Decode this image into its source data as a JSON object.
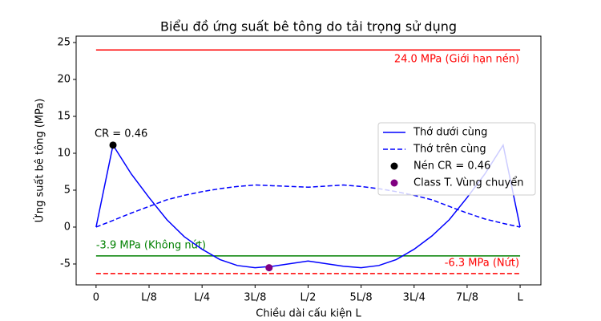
{
  "chart_data": {
    "type": "line",
    "title": "Biểu đồ ứng suất bê tông do tải trọng sử dụng",
    "xlabel": "Chiều dài cấu kiện L",
    "ylabel": "Ứng suất bê tông (MPa)",
    "xlim": [
      -0.047,
      1.049
    ],
    "ylim": [
      -7.83,
      25.87
    ],
    "xticks": [
      0,
      {
        "value": 0.125,
        "label": "L/8"
      },
      {
        "value": 0.25,
        "label": "L/4"
      },
      {
        "value": 0.375,
        "label": "3L/8"
      },
      {
        "value": 0.5,
        "label": "L/2"
      },
      {
        "value": 0.625,
        "label": "5L/8"
      },
      {
        "value": 0.75,
        "label": "3L/4"
      },
      {
        "value": 0.875,
        "label": "7L/8"
      },
      {
        "value": 1,
        "label": "L"
      }
    ],
    "yticks": [
      -5,
      0,
      5,
      10,
      15,
      20,
      25
    ],
    "legend": "center right",
    "series": [
      {
        "name": "Thớ dưới cùng",
        "kind": "line",
        "style": "solid",
        "color": "#0000ff",
        "x": [
          0,
          0.04,
          0.083,
          0.125,
          0.167,
          0.208,
          0.25,
          0.292,
          0.333,
          0.375,
          0.417,
          0.5,
          0.583,
          0.625,
          0.667,
          0.708,
          0.75,
          0.792,
          0.833,
          0.875,
          0.917,
          0.96,
          1
        ],
        "values": [
          0,
          11.1,
          7.2,
          4.0,
          1.0,
          -1.3,
          -3.0,
          -4.4,
          -5.2,
          -5.5,
          -5.3,
          -4.6,
          -5.3,
          -5.5,
          -5.2,
          -4.4,
          -3.0,
          -1.2,
          1.0,
          4.0,
          7.2,
          11.1,
          0
        ]
      },
      {
        "name": "Thớ trên cùng",
        "kind": "line",
        "style": "dashed",
        "color": "#0000ff",
        "x": [
          0,
          0.04,
          0.083,
          0.125,
          0.167,
          0.208,
          0.25,
          0.292,
          0.333,
          0.375,
          0.417,
          0.5,
          0.583,
          0.625,
          0.667,
          0.708,
          0.75,
          0.792,
          0.833,
          0.875,
          0.917,
          0.96,
          1
        ],
        "values": [
          0,
          0.9,
          1.9,
          2.8,
          3.7,
          4.3,
          4.8,
          5.2,
          5.5,
          5.7,
          5.6,
          5.4,
          5.7,
          5.5,
          5.2,
          4.8,
          4.3,
          3.7,
          2.8,
          1.9,
          1.1,
          0.5,
          0
        ]
      },
      {
        "name": "Nén CR = 0.46",
        "kind": "scatter",
        "color": "#000000",
        "x": [
          0.04
        ],
        "values": [
          11.1
        ],
        "annotation": "CR = 0.46"
      },
      {
        "name": "Class T. Vùng chuyển",
        "kind": "scatter",
        "color": "#800080",
        "x": [
          0.408
        ],
        "values": [
          -5.5
        ]
      }
    ],
    "hlines": [
      {
        "value": 24,
        "color": "#ff0000",
        "style": "solid",
        "label": "24.0 MPa (Giới hạn nén)",
        "label_align": "right",
        "label_position": "below"
      },
      {
        "value": -3.9,
        "color": "#008000",
        "style": "solid",
        "label": "-3.9 MPa (Không nứt)",
        "label_align": "left",
        "label_position": "above"
      },
      {
        "value": -6.3,
        "color": "#ff0000",
        "style": "dashed",
        "label": "-6.3 MPa (Nứt)",
        "label_align": "right",
        "label_position": "above"
      }
    ]
  }
}
